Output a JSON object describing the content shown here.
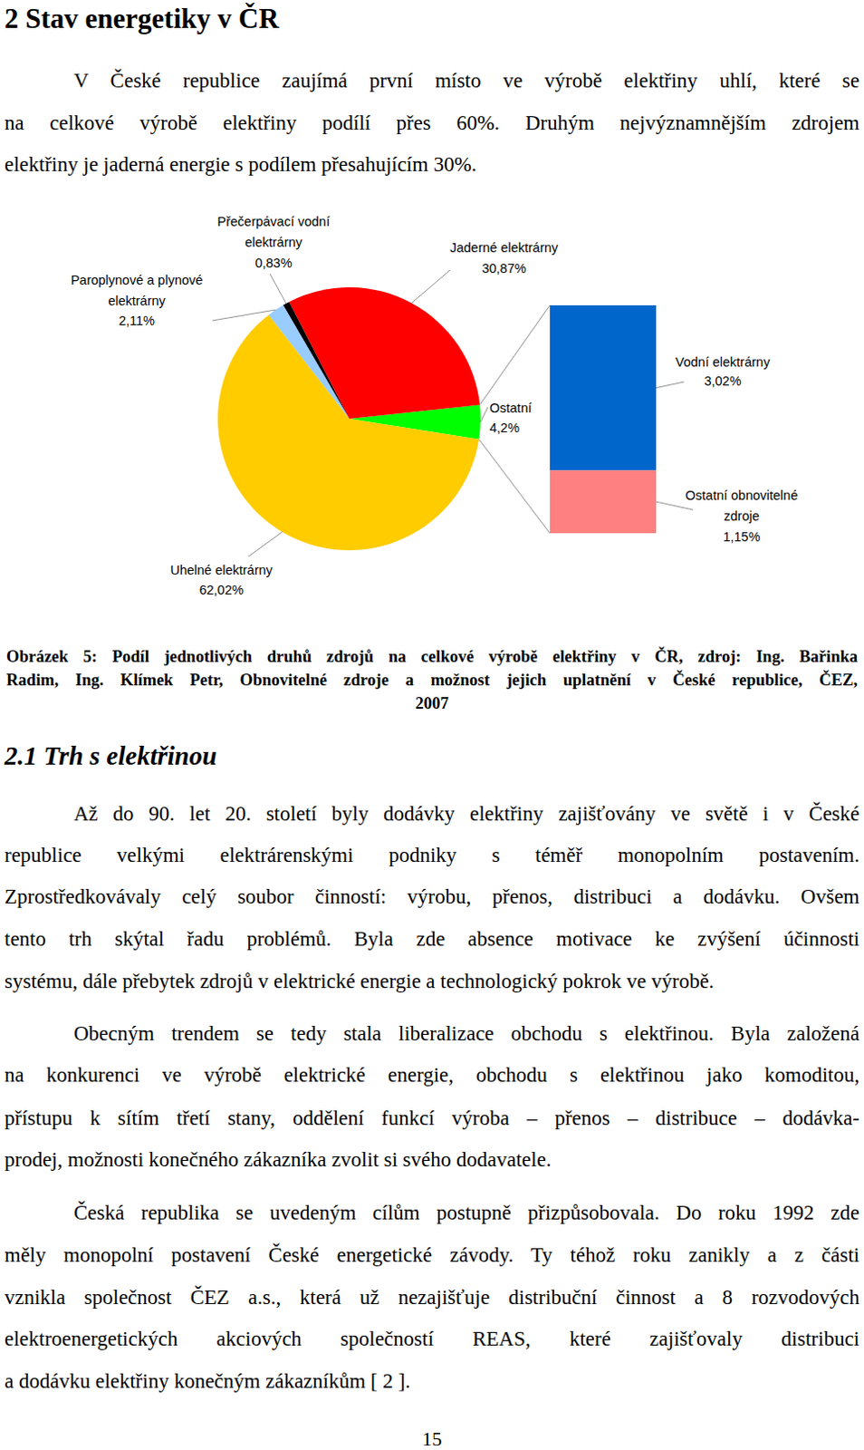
{
  "heading": "2 Stav energetiky v ČR",
  "intro": {
    "lines": [
      "V České republice zaujímá první místo ve výrobě elektřiny uhlí, které se",
      "na celkové výrobě elektřiny podílí přes 60%. Druhým nejvýznamnějším zdrojem",
      "elektřiny je jaderná energie s podílem přesahujícím 30%."
    ]
  },
  "chart_data": {
    "type": "pie",
    "categories": [
      "Ostatní",
      "Jaderné elektrárny",
      "Přečerpávací vodní elektrárny",
      "Paroplynové a plynové elektrárny",
      "Uhelné elektrárny"
    ],
    "values": [
      4.2,
      30.87,
      0.83,
      2.11,
      62.02
    ],
    "value_labels": [
      "4,2%",
      "30,87%",
      "0,83%",
      "2,11%",
      "62,02%"
    ],
    "colors": [
      "#00ff00",
      "#ff0000",
      "#000000",
      "#99ccff",
      "#ffcc00"
    ],
    "data_labels": true,
    "breakdown": {
      "categories": [
        "Vodní elektrárny",
        "Ostatní obnovitelné zdroje"
      ],
      "values": [
        3.02,
        1.15
      ],
      "value_labels": [
        "3,02%",
        "1,15%"
      ],
      "colors": [
        "#0066cc",
        "#ff8080"
      ]
    }
  },
  "caption": {
    "lines": [
      "Obrázek 5: Podíl jednotlivých druhů zdrojů na celkové výrobě elektřiny v ČR, zdroj: Ing. Bařinka",
      "Radim, Ing. Klímek Petr, Obnovitelné zdroje a možnost jejich uplatnění v České republice, ČEZ,",
      "2007"
    ]
  },
  "section": {
    "title": "2.1 Trh s elektřinou",
    "paragraphs": [
      {
        "lines": [
          "Až do 90. let 20. století byly dodávky elektřiny zajišťovány ve světě i v České",
          "republice velkými elektrárenskými podniky s téměř monopolním postavením.",
          "Zprostředkovávaly celý soubor činností: výrobu, přenos, distribuci a dodávku. Ovšem",
          "tento trh skýtal řadu problémů. Byla zde absence motivace ke zvýšení účinnosti",
          "systému, dále přebytek zdrojů v elektrické energie a technologický pokrok ve výrobě."
        ]
      },
      {
        "lines": [
          "Obecným trendem se tedy stala liberalizace obchodu s elektřinou. Byla založená",
          "na konkurenci ve výrobě elektrické energie, obchodu s elektřinou jako komoditou,",
          "přístupu k sítím třetí stany, oddělení funkcí výroba – přenos – distribuce – dodávka-",
          "prodej, možnosti konečného zákazníka zvolit si svého dodavatele."
        ]
      },
      {
        "lines": [
          "Česká republika se uvedeným cílům postupně přizpůsobovala. Do roku 1992 zde",
          "měly monopolní postavení České energetické závody. Ty téhož roku zanikly a z části",
          "vznikla společnost ČEZ a.s., která už nezajišťuje distribuční činnost a 8 rozvodových",
          "elektroenergetických akciových společností REAS, které zajišťovaly distribuci",
          "a dodávku elektřiny konečným zákazníkům [ 2 ]."
        ]
      }
    ]
  },
  "page_number": "15"
}
